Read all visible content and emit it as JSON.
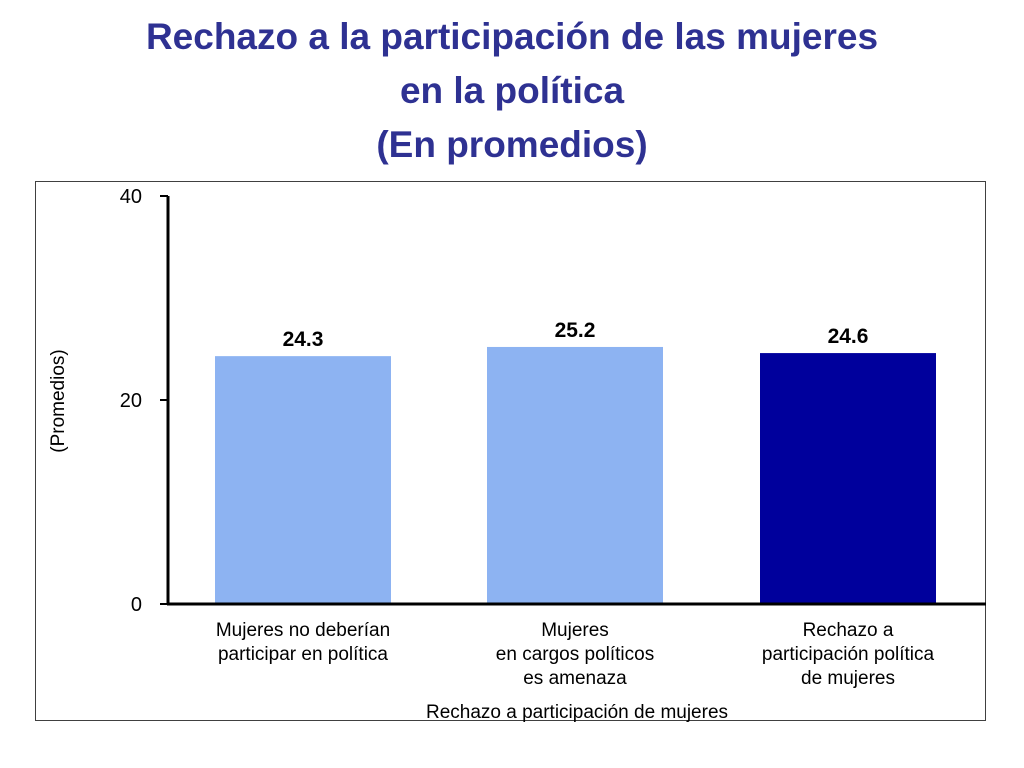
{
  "title_lines": [
    "Rechazo a la participación de las mujeres",
    "en la política",
    "(En promedios)"
  ],
  "chart_data": {
    "type": "bar",
    "title": "Rechazo a la participación de las mujeres en la política (En promedios)",
    "xlabel": "Rechazo a participación de mujeres",
    "ylabel": "(Promedios)",
    "ylim": [
      0,
      40
    ],
    "yticks": [
      "0",
      "20",
      "40"
    ],
    "grid": false,
    "categories": [
      [
        "Mujeres no deberían",
        "participar en política"
      ],
      [
        "Mujeres",
        "en cargos políticos",
        "es amenaza"
      ],
      [
        "Rechazo a",
        "participación política",
        "de mujeres"
      ]
    ],
    "values": [
      24.3,
      25.2,
      24.6
    ],
    "value_labels": [
      "24.3",
      "25.2",
      "24.6"
    ],
    "colors": [
      "#8db3f2",
      "#8db3f2",
      "#00009c"
    ]
  }
}
